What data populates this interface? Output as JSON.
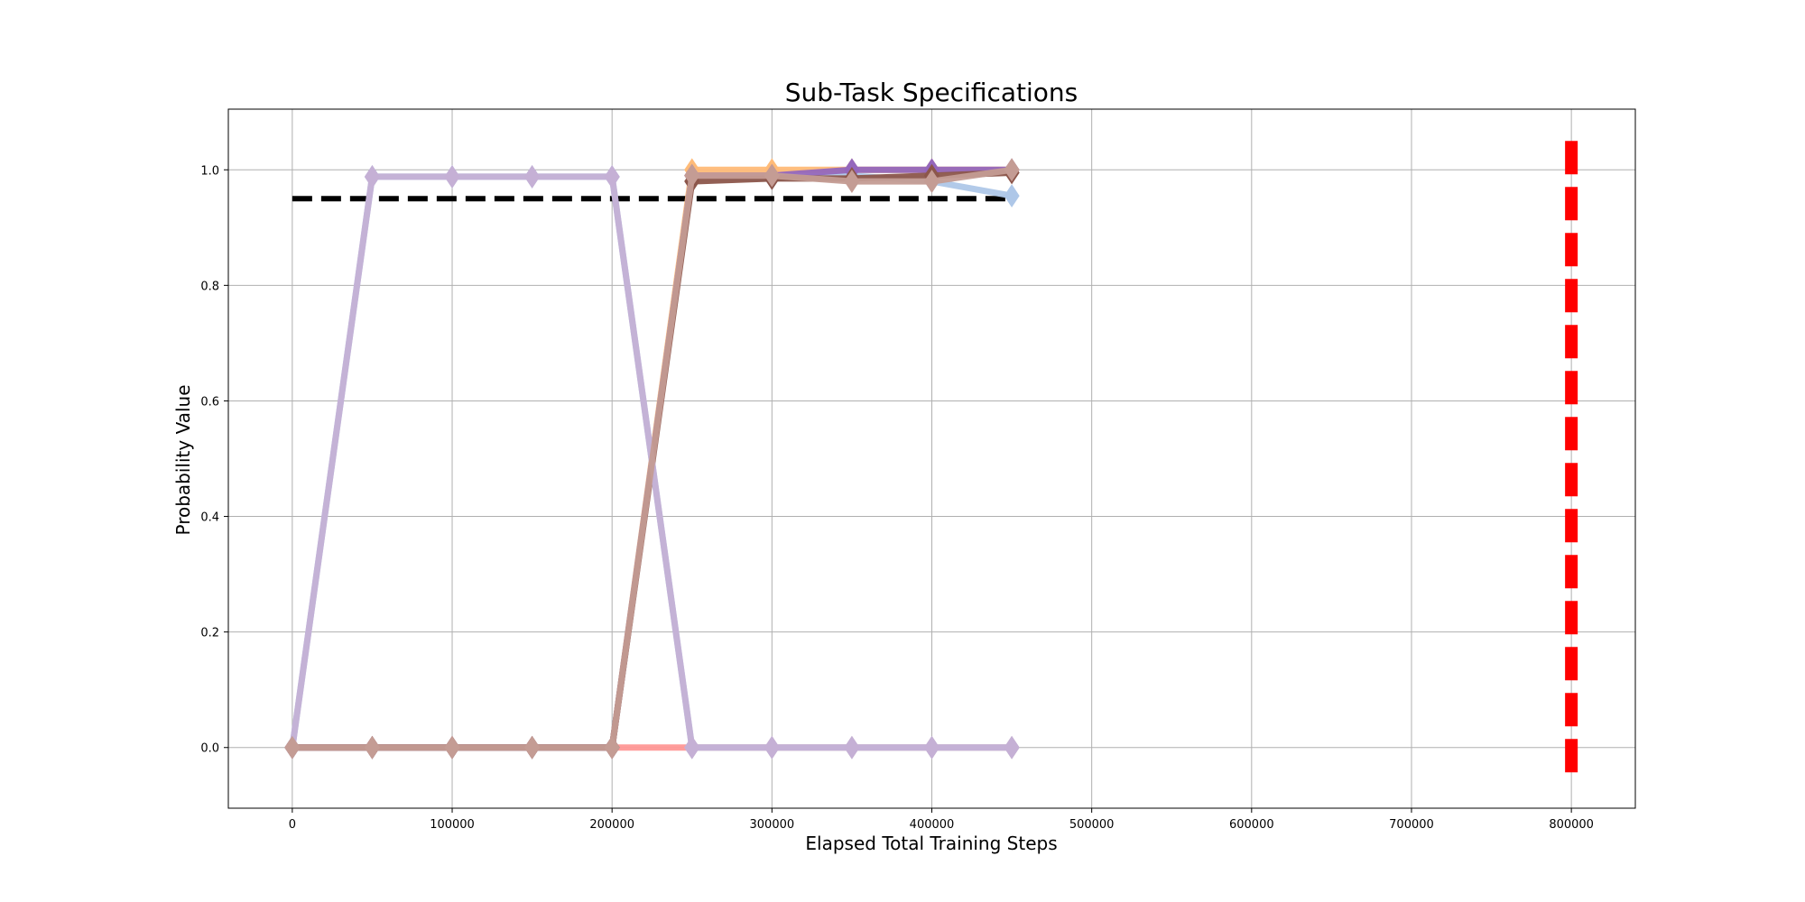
{
  "chart_data": {
    "type": "line",
    "title": "Sub-Task Specifications",
    "xlabel": "Elapsed Total Training Steps",
    "ylabel": "Probability Value",
    "xlim": [
      -40000,
      840000
    ],
    "ylim": [
      -0.105,
      1.105
    ],
    "xticks": [
      0,
      100000,
      200000,
      300000,
      400000,
      500000,
      600000,
      700000,
      800000
    ],
    "yticks": [
      0.0,
      0.2,
      0.4,
      0.6,
      0.8,
      1.0
    ],
    "grid": true,
    "legend": "none",
    "threshold": {
      "y": 0.95,
      "x_range": [
        0,
        450000
      ],
      "color": "#000000",
      "style": "dashed"
    },
    "vertical_marker": {
      "x": 800000,
      "y_range": [
        -0.05,
        1.05
      ],
      "color": "#ff0000",
      "style": "dashed"
    },
    "x": [
      0,
      50000,
      100000,
      150000,
      200000,
      250000,
      300000,
      350000,
      400000,
      450000
    ],
    "series": [
      {
        "color": "#ff9896",
        "values": [
          0,
          0,
          0,
          0,
          0,
          0,
          0,
          0,
          0,
          0
        ]
      },
      {
        "color": "#ffbb78",
        "values": [
          0,
          0,
          0,
          0,
          0,
          1.0,
          1.0,
          1.0,
          1.0,
          1.0
        ]
      },
      {
        "color": "#aec7e8",
        "values": [
          0,
          0.988,
          0.988,
          0.988,
          0.988,
          0.0,
          0.0,
          0.0,
          0.0,
          0.0
        ]
      },
      {
        "color": "#aec7e8",
        "values": [
          0,
          0,
          0,
          0,
          0,
          0.99,
          0.985,
          0.99,
          0.98,
          0.955
        ]
      },
      {
        "color": "#9467bd",
        "values": [
          0,
          0,
          0,
          0,
          0,
          0.99,
          0.99,
          1.0,
          1.0,
          1.0
        ]
      },
      {
        "color": "#8c564b",
        "values": [
          0,
          0,
          0,
          0,
          0,
          0.98,
          0.985,
          0.985,
          0.99,
          0.995
        ]
      },
      {
        "color": "#c5b0d5",
        "values": [
          0,
          0.988,
          0.988,
          0.988,
          0.988,
          0.0,
          0.0,
          0.0,
          0.0,
          0.0
        ]
      },
      {
        "color": "#c49c94",
        "values": [
          0,
          0,
          0,
          0,
          0,
          0.99,
          0.99,
          0.98,
          0.98,
          1.0
        ]
      }
    ]
  }
}
